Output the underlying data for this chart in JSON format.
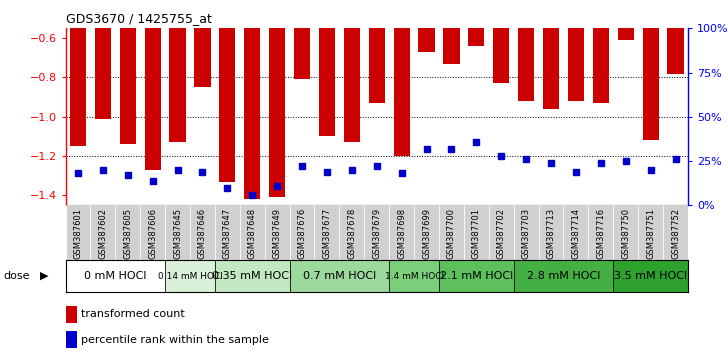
{
  "title": "GDS3670 / 1425755_at",
  "samples": [
    "GSM387601",
    "GSM387602",
    "GSM387605",
    "GSM387606",
    "GSM387645",
    "GSM387646",
    "GSM387647",
    "GSM387648",
    "GSM387649",
    "GSM387676",
    "GSM387677",
    "GSM387678",
    "GSM387679",
    "GSM387698",
    "GSM387699",
    "GSM387700",
    "GSM387701",
    "GSM387702",
    "GSM387703",
    "GSM387713",
    "GSM387714",
    "GSM387716",
    "GSM387750",
    "GSM387751",
    "GSM387752"
  ],
  "red_values": [
    -1.15,
    -1.01,
    -1.14,
    -1.27,
    -1.13,
    -0.85,
    -1.33,
    -1.42,
    -1.41,
    -0.81,
    -1.1,
    -1.13,
    -0.93,
    -1.2,
    -0.67,
    -0.73,
    -0.64,
    -0.83,
    -0.92,
    -0.96,
    -0.92,
    -0.93,
    -0.61,
    -1.12,
    -0.78
  ],
  "blue_values_pct": [
    18,
    20,
    17,
    14,
    20,
    19,
    10,
    6,
    11,
    22,
    19,
    20,
    22,
    18,
    32,
    32,
    36,
    28,
    26,
    24,
    19,
    24,
    25,
    20,
    26
  ],
  "dose_groups": [
    {
      "label": "0 mM HOCl",
      "start": 0,
      "end": 4,
      "color": "#ffffff"
    },
    {
      "label": "0.14 mM HOCl",
      "start": 4,
      "end": 6,
      "color": "#d9f0d9"
    },
    {
      "label": "0.35 mM HOCl",
      "start": 6,
      "end": 9,
      "color": "#c2e8c2"
    },
    {
      "label": "0.7 mM HOCl",
      "start": 9,
      "end": 13,
      "color": "#9dd89d"
    },
    {
      "label": "1.4 mM HOCl",
      "start": 13,
      "end": 15,
      "color": "#7bcf7b"
    },
    {
      "label": "2.1 mM HOCl",
      "start": 15,
      "end": 18,
      "color": "#5dc05d"
    },
    {
      "label": "2.8 mM HOCl",
      "start": 18,
      "end": 22,
      "color": "#44b044"
    },
    {
      "label": "3.5 mM HOCl",
      "start": 22,
      "end": 25,
      "color": "#2da02d"
    }
  ],
  "ylim_left": [
    -1.45,
    -0.55
  ],
  "yticks_left": [
    -1.4,
    -1.2,
    -1.0,
    -0.8,
    -0.6
  ],
  "ylim_right": [
    0,
    100
  ],
  "yticks_right": [
    0,
    25,
    50,
    75,
    100
  ],
  "ytick_labels_right": [
    "0%",
    "25%",
    "50%",
    "75%",
    "100%"
  ],
  "bar_color": "#cc0000",
  "blue_color": "#0000cc",
  "bg_color": "#ffffff"
}
